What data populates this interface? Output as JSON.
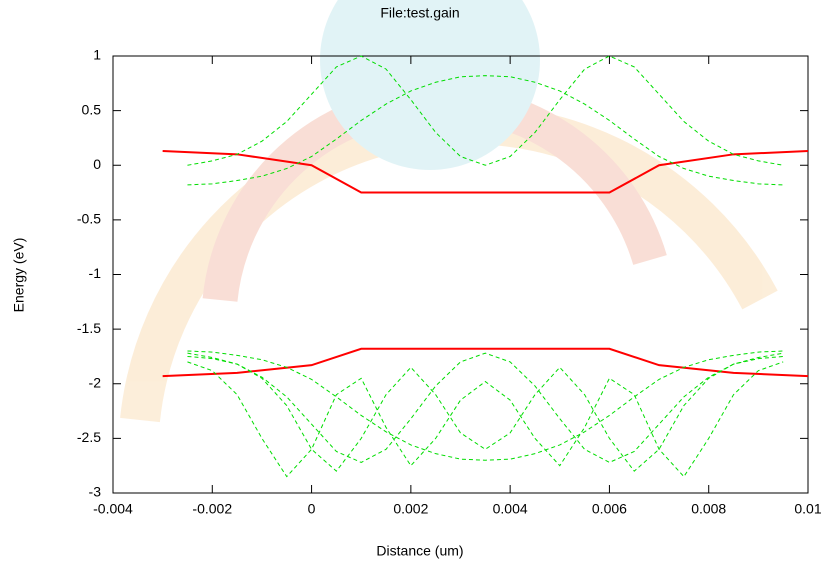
{
  "chart_data": {
    "type": "line",
    "title": "File:test.gain",
    "xlabel": "Distance (um)",
    "ylabel": "Energy (eV)",
    "xlim": [
      -0.004,
      0.01
    ],
    "ylim": [
      -3,
      1
    ],
    "xticks": [
      -0.004,
      -0.002,
      0,
      0.002,
      0.004,
      0.006,
      0.008,
      0.01
    ],
    "yticks": [
      1,
      0.5,
      0,
      -0.5,
      -1,
      -1.5,
      -2,
      -2.5,
      -3
    ],
    "x": [
      -0.0025,
      -0.002,
      -0.0015,
      -0.001,
      -0.0005,
      0,
      0.0005,
      0.001,
      0.0015,
      0.002,
      0.0025,
      0.003,
      0.0035,
      0.004,
      0.0045,
      0.005,
      0.0055,
      0.006,
      0.0065,
      0.007,
      0.0075,
      0.008,
      0.0085,
      0.009,
      0.0095
    ],
    "series": [
      {
        "color": "#ff0000",
        "dashed": false,
        "x": [
          -0.003,
          -0.0015,
          0,
          0.001,
          0.006,
          0.007,
          0.0085,
          0.01
        ],
        "values": [
          0.13,
          0.1,
          0,
          -0.25,
          -0.25,
          0,
          0.1,
          0.13
        ]
      },
      {
        "color": "#ff0000",
        "dashed": false,
        "x": [
          -0.003,
          -0.0015,
          0,
          0.001,
          0.006,
          0.007,
          0.0085,
          0.01
        ],
        "values": [
          -1.93,
          -1.9,
          -1.83,
          -1.68,
          -1.68,
          -1.83,
          -1.9,
          -1.93
        ]
      },
      {
        "color": "#00dd00",
        "dashed": true,
        "values": [
          -0.18,
          -0.17,
          -0.14,
          -0.1,
          -0.03,
          0.08,
          0.24,
          0.41,
          0.56,
          0.68,
          0.76,
          0.81,
          0.82,
          0.81,
          0.76,
          0.68,
          0.56,
          0.41,
          0.24,
          0.08,
          -0.03,
          -0.1,
          -0.14,
          -0.17,
          -0.18
        ]
      },
      {
        "color": "#00dd00",
        "dashed": true,
        "values": [
          0,
          0.04,
          0.1,
          0.22,
          0.4,
          0.65,
          0.9,
          1,
          0.88,
          0.6,
          0.3,
          0.08,
          0,
          0.08,
          0.3,
          0.6,
          0.88,
          1,
          0.9,
          0.65,
          0.4,
          0.22,
          0.1,
          0.04,
          0
        ]
      },
      {
        "color": "#00dd00",
        "dashed": true,
        "values": [
          -1.7,
          -1.71,
          -1.74,
          -1.78,
          -1.85,
          -1.96,
          -2.12,
          -2.29,
          -2.44,
          -2.56,
          -2.64,
          -2.69,
          -2.7,
          -2.69,
          -2.64,
          -2.56,
          -2.44,
          -2.29,
          -2.12,
          -1.96,
          -1.85,
          -1.78,
          -1.74,
          -1.71,
          -1.7
        ]
      },
      {
        "color": "#00dd00",
        "dashed": true,
        "values": [
          -1.72,
          -1.76,
          -1.82,
          -1.94,
          -2.12,
          -2.37,
          -2.62,
          -2.72,
          -2.6,
          -2.32,
          -2.02,
          -1.8,
          -1.72,
          -1.8,
          -2.02,
          -2.32,
          -2.6,
          -2.72,
          -2.62,
          -2.37,
          -2.12,
          -1.94,
          -1.82,
          -1.76,
          -1.72
        ]
      },
      {
        "color": "#00dd00",
        "dashed": true,
        "values": [
          -1.75,
          -1.77,
          -1.82,
          -1.95,
          -2.2,
          -2.6,
          -2.8,
          -2.5,
          -2.1,
          -1.85,
          -2.1,
          -2.45,
          -2.6,
          -2.45,
          -2.1,
          -1.85,
          -2.1,
          -2.5,
          -2.8,
          -2.6,
          -2.2,
          -1.95,
          -1.82,
          -1.77,
          -1.75
        ]
      },
      {
        "color": "#00dd00",
        "dashed": true,
        "values": [
          -1.8,
          -1.88,
          -2.1,
          -2.5,
          -2.85,
          -2.6,
          -2.1,
          -1.95,
          -2.4,
          -2.75,
          -2.5,
          -2.15,
          -1.98,
          -2.15,
          -2.5,
          -2.75,
          -2.4,
          -1.95,
          -2.1,
          -2.6,
          -2.85,
          -2.5,
          -2.1,
          -1.88,
          -1.8
        ]
      }
    ]
  }
}
